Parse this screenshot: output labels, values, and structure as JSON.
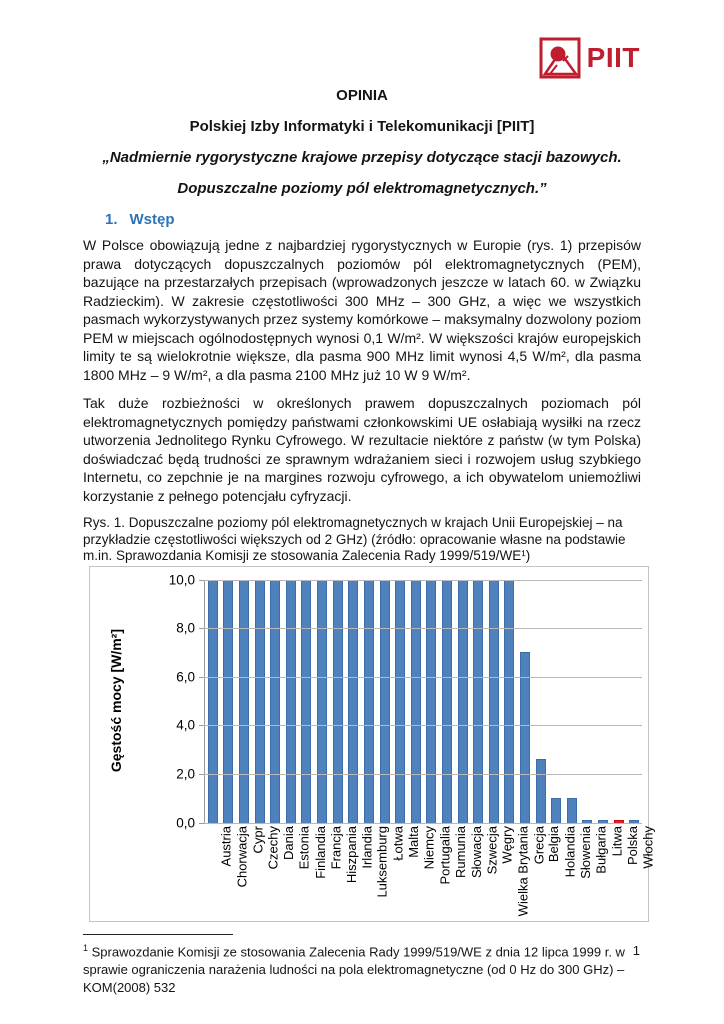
{
  "logo": {
    "text": "PIIT",
    "color": "#be1e2d"
  },
  "header": {
    "line1": "OPINIA",
    "line2": "Polskiej Izby Informatyki i Telekomunikacji [PIIT]",
    "line3": "„Nadmiernie rygorystyczne krajowe przepisy dotyczące stacji bazowych.",
    "line4": "Dopuszczalne poziomy pól elektromagnetycznych.”"
  },
  "section": {
    "number": "1.",
    "label": "Wstęp",
    "color": "#2e74b5"
  },
  "paragraphs": {
    "p1": "W Polsce obowiązują jedne z najbardziej rygorystycznych w Europie (rys. 1) przepisów prawa dotyczących dopuszczalnych poziomów pól elektromagnetycznych (PEM), bazujące na przestarzałych przepisach (wprowadzonych jeszcze w latach 60. w Związku Radzieckim). W zakresie częstotliwości 300 MHz – 300 GHz, a więc we wszystkich pasmach wykorzystywanych przez systemy komórkowe – maksymalny dozwolony poziom PEM w miejscach ogólnodostępnych wynosi 0,1 W/m². W większości krajów europejskich limity te są wielokrotnie większe, dla pasma 900 MHz limit wynosi 4,5 W/m², dla pasma 1800 MHz – 9 W/m², a dla pasma 2100 MHz już 10 W 9 W/m².",
    "p2": "Tak duże rozbieżności w określonych prawem dopuszczalnych poziomach pól elektromagnetycznych pomiędzy państwami członkowskimi UE osłabiają wysiłki na rzecz utworzenia Jednolitego Rynku Cyfrowego. W rezultacie niektóre z państw (w tym Polska) doświadczać będą trudności ze sprawnym wdrażaniem sieci i rozwojem usług szybkiego Internetu, co zepchnie je na margines rozwoju cyfrowego, a ich obywatelom uniemożliwi korzystanie z pełnego potencjału cyfryzacji."
  },
  "figure": {
    "caption": "Rys. 1. Dopuszczalne poziomy pól elektromagnetycznych w krajach Unii Europejskiej – na przykładzie częstotliwości większych od 2 GHz) (źródło: opracowanie własne na podstawie m.in. Sprawozdania Komisji ze stosowania Zalecenia Rady 1999/519/WE¹)"
  },
  "chart_data": {
    "type": "bar",
    "title": "",
    "xlabel": "",
    "ylabel": "Gęstość mocy [W/m²]",
    "ylim": [
      0,
      10
    ],
    "yticks": [
      "10,0",
      "8,0",
      "6,0",
      "4,0",
      "2,0",
      "0,0"
    ],
    "grid": true,
    "legend": false,
    "categories": [
      "Austria",
      "Chorwacja",
      "Cypr",
      "Czechy",
      "Dania",
      "Estonia",
      "Finlandia",
      "Francja",
      "Hiszpania",
      "Irlandia",
      "Luksemburg",
      "Łotwa",
      "Malta",
      "Niemcy",
      "Portugalia",
      "Rumunia",
      "Słowacja",
      "Szwecja",
      "Węgry",
      "Wielka Brytania",
      "Grecja",
      "Belgia",
      "Holandia",
      "Słowenia",
      "Bułgaria",
      "Litwa",
      "Polska",
      "Włochy"
    ],
    "values": [
      10,
      10,
      10,
      10,
      10,
      10,
      10,
      10,
      10,
      10,
      10,
      10,
      10,
      10,
      10,
      10,
      10,
      10,
      10,
      10,
      7,
      2.6,
      1,
      1,
      0.1,
      0.1,
      0.1,
      0.1
    ],
    "bar_color": "#4f81bd",
    "bar_border_color": "#3c6da8",
    "highlight": {
      "category": "Polska",
      "color": "#ed1c24",
      "border_color": "#c40f16"
    },
    "gridline_color": "#b8b8b8"
  },
  "footnote": {
    "marker": "1",
    "text": "Sprawozdanie Komisji ze stosowania Zalecenia Rady 1999/519/WE  z dnia 12 lipca 1999 r. w sprawie ograniczenia narażenia ludności na pola elektromagnetyczne (od 0 Hz do 300 GHz) – KOM(2008) 532"
  },
  "page_number": "1"
}
